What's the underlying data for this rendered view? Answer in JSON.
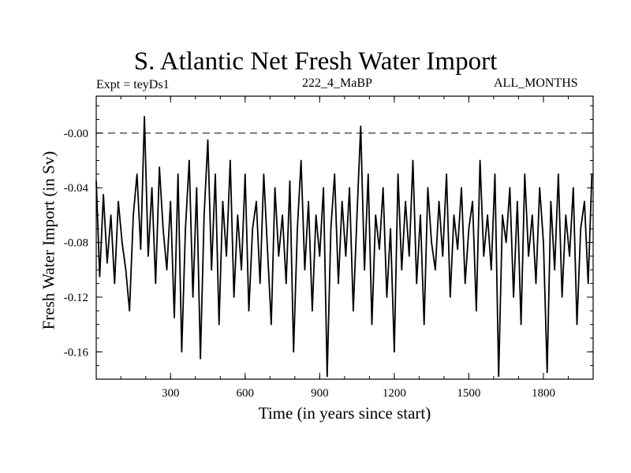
{
  "chart_data": {
    "type": "line",
    "title": "S. Atlantic Net Fresh Water Import",
    "subtitle_left": "Expt = teyDs1",
    "subtitle_center": "222_4_MaBP",
    "subtitle_right": "ALL_MONTHS",
    "xlabel": "Time (in years since start)",
    "ylabel": "Fresh Water Import (in Sv)",
    "xlim": [
      1,
      2000
    ],
    "ylim": [
      -0.18,
      0.027
    ],
    "xticks": [
      300,
      600,
      900,
      1200,
      1500,
      1800
    ],
    "xtick_labels": [
      "300",
      "600",
      "900",
      "1200",
      "1500",
      "1800"
    ],
    "yticks": [
      0,
      -0.04,
      -0.08,
      -0.12,
      -0.16
    ],
    "ytick_labels": [
      "-0.00",
      "-0.04",
      "-0.08",
      "-0.12",
      "-0.16"
    ],
    "reference_line": {
      "y": 0,
      "style": "dashed"
    },
    "series": [
      {
        "name": "Fresh Water Import",
        "color": "#000000",
        "x": [
          1,
          15,
          30,
          45,
          60,
          75,
          90,
          105,
          120,
          135,
          150,
          165,
          180,
          195,
          210,
          225,
          240,
          255,
          270,
          285,
          300,
          315,
          330,
          345,
          360,
          375,
          390,
          405,
          420,
          435,
          450,
          465,
          480,
          495,
          510,
          525,
          540,
          555,
          570,
          585,
          600,
          615,
          630,
          645,
          660,
          675,
          690,
          705,
          720,
          735,
          750,
          765,
          780,
          795,
          810,
          825,
          840,
          855,
          870,
          885,
          900,
          915,
          930,
          945,
          960,
          975,
          990,
          1005,
          1020,
          1035,
          1050,
          1065,
          1080,
          1095,
          1110,
          1125,
          1140,
          1155,
          1170,
          1185,
          1200,
          1215,
          1230,
          1245,
          1260,
          1275,
          1290,
          1305,
          1320,
          1335,
          1350,
          1365,
          1380,
          1395,
          1410,
          1425,
          1440,
          1455,
          1470,
          1485,
          1500,
          1515,
          1530,
          1545,
          1560,
          1575,
          1590,
          1605,
          1620,
          1635,
          1650,
          1665,
          1680,
          1695,
          1710,
          1725,
          1740,
          1755,
          1770,
          1785,
          1800,
          1815,
          1830,
          1845,
          1860,
          1875,
          1890,
          1905,
          1920,
          1935,
          1950,
          1965,
          1980,
          1995
        ],
        "values": [
          -0.035,
          -0.105,
          -0.045,
          -0.095,
          -0.06,
          -0.11,
          -0.05,
          -0.08,
          -0.1,
          -0.13,
          -0.06,
          -0.03,
          -0.085,
          0.012,
          -0.09,
          -0.04,
          -0.11,
          -0.025,
          -0.07,
          -0.1,
          -0.05,
          -0.135,
          -0.03,
          -0.16,
          -0.07,
          -0.02,
          -0.12,
          -0.04,
          -0.165,
          -0.06,
          -0.005,
          -0.1,
          -0.03,
          -0.14,
          -0.05,
          -0.09,
          -0.02,
          -0.12,
          -0.06,
          -0.1,
          -0.03,
          -0.13,
          -0.07,
          -0.05,
          -0.11,
          -0.03,
          -0.085,
          -0.14,
          -0.04,
          -0.09,
          -0.06,
          -0.11,
          -0.035,
          -0.16,
          -0.07,
          -0.02,
          -0.1,
          -0.05,
          -0.13,
          -0.06,
          -0.09,
          -0.04,
          -0.178,
          -0.07,
          -0.03,
          -0.11,
          -0.05,
          -0.09,
          -0.04,
          -0.13,
          -0.06,
          0.005,
          -0.1,
          -0.03,
          -0.14,
          -0.06,
          -0.085,
          -0.04,
          -0.12,
          -0.07,
          -0.16,
          -0.03,
          -0.1,
          -0.05,
          -0.09,
          -0.02,
          -0.11,
          -0.06,
          -0.14,
          -0.04,
          -0.08,
          -0.1,
          -0.05,
          -0.09,
          -0.03,
          -0.12,
          -0.06,
          -0.085,
          -0.04,
          -0.11,
          -0.07,
          -0.05,
          -0.13,
          -0.02,
          -0.09,
          -0.06,
          -0.1,
          -0.03,
          -0.178,
          -0.06,
          -0.08,
          -0.04,
          -0.12,
          -0.05,
          -0.14,
          -0.03,
          -0.09,
          -0.06,
          -0.11,
          -0.04,
          -0.08,
          -0.175,
          -0.05,
          -0.1,
          -0.03,
          -0.12,
          -0.06,
          -0.09,
          -0.04,
          -0.14,
          -0.07,
          -0.05,
          -0.11,
          -0.03
        ]
      }
    ]
  }
}
